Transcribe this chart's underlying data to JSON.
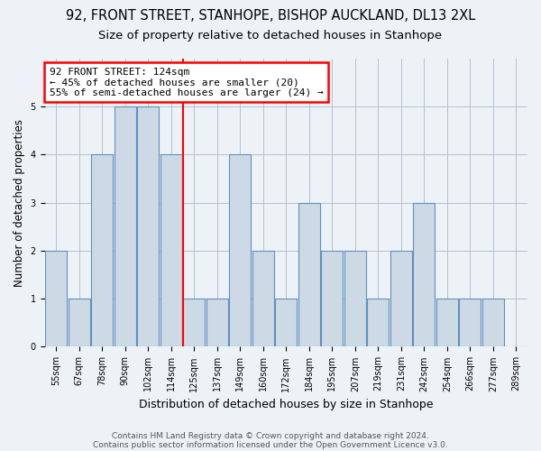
{
  "title": "92, FRONT STREET, STANHOPE, BISHOP AUCKLAND, DL13 2XL",
  "subtitle": "Size of property relative to detached houses in Stanhope",
  "xlabel": "Distribution of detached houses by size in Stanhope",
  "ylabel": "Number of detached properties",
  "categories": [
    "55sqm",
    "67sqm",
    "78sqm",
    "90sqm",
    "102sqm",
    "114sqm",
    "125sqm",
    "137sqm",
    "149sqm",
    "160sqm",
    "172sqm",
    "184sqm",
    "195sqm",
    "207sqm",
    "219sqm",
    "231sqm",
    "242sqm",
    "254sqm",
    "266sqm",
    "277sqm",
    "289sqm"
  ],
  "values": [
    2,
    1,
    4,
    5,
    5,
    4,
    1,
    1,
    4,
    2,
    1,
    3,
    2,
    2,
    1,
    2,
    3,
    1,
    1,
    1,
    0
  ],
  "bar_color": "#cdd9e5",
  "bar_edge_color": "#6090c0",
  "property_line_x": 5.5,
  "annotation_line1": "92 FRONT STREET: 124sqm",
  "annotation_line2": "← 45% of detached houses are smaller (20)",
  "annotation_line3": "55% of semi-detached houses are larger (24) →",
  "annotation_box_color": "white",
  "annotation_box_edge": "red",
  "ylim": [
    0,
    6
  ],
  "yticks": [
    0,
    1,
    2,
    3,
    4,
    5
  ],
  "footer_line1": "Contains HM Land Registry data © Crown copyright and database right 2024.",
  "footer_line2": "Contains public sector information licensed under the Open Government Licence v3.0.",
  "background_color": "#edf2f7",
  "title_fontsize": 10.5,
  "subtitle_fontsize": 9.5,
  "ylabel_fontsize": 8.5,
  "xlabel_fontsize": 9,
  "tick_fontsize": 7,
  "footer_fontsize": 6.5,
  "annot_fontsize": 8
}
